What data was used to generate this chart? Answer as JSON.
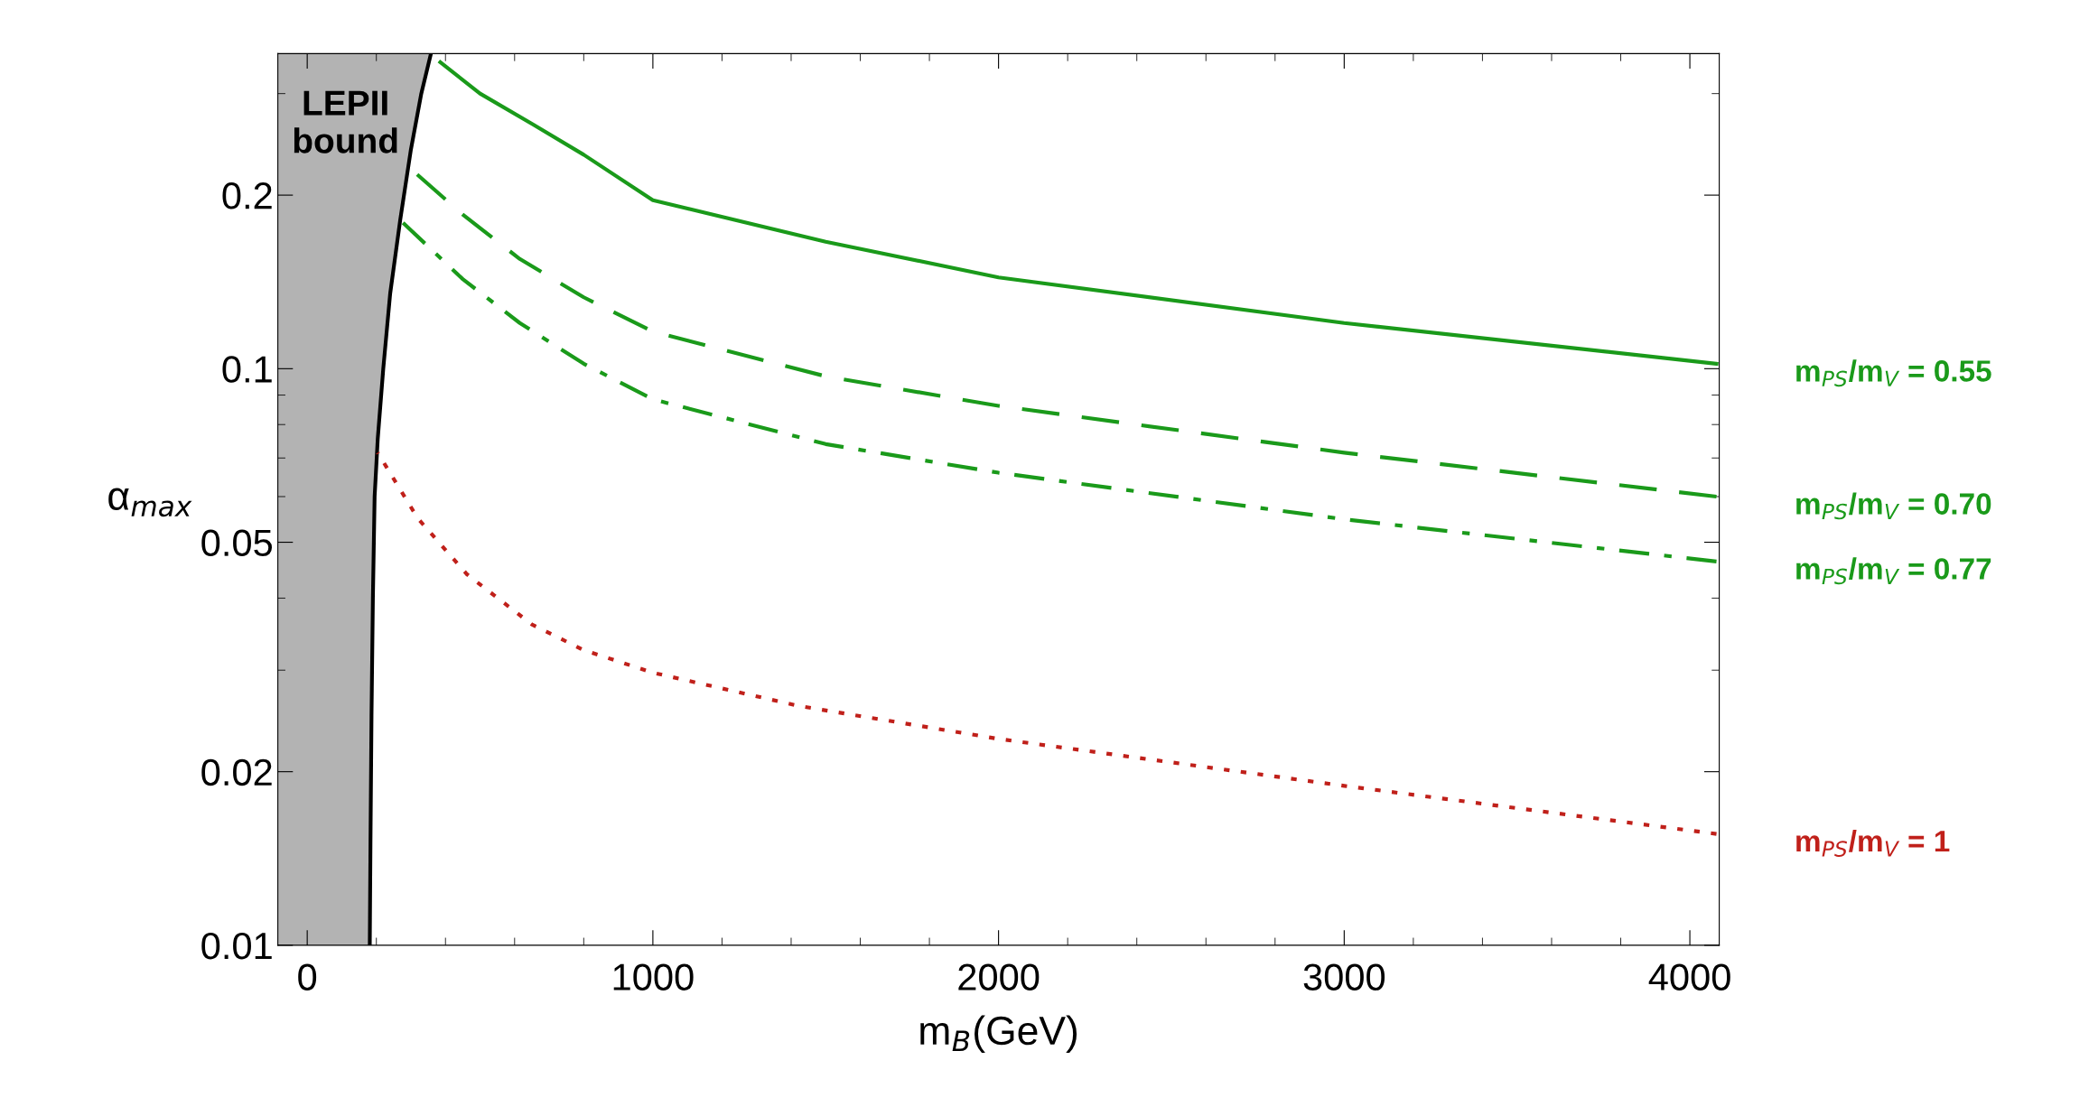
{
  "chart_data": {
    "type": "line",
    "xlabel": "m$_{B}$(GeV)",
    "ylabel": "α$_{max}$",
    "xlim": [
      -85,
      4085
    ],
    "xticks": [
      0,
      1000,
      2000,
      3000,
      4000
    ],
    "ylim": [
      0.01,
      0.352
    ],
    "yticks": [
      0.01,
      0.02,
      0.05,
      0.1,
      0.2
    ],
    "log": "y",
    "grid": false,
    "annotations": [
      "LEPII\nbound"
    ],
    "series": [
      {
        "type": "line",
        "color": "#000000",
        "line_style": "solid",
        "x": [
          181,
          183,
          186,
          190,
          195,
          204,
          220,
          240,
          269,
          300,
          330,
          358
        ],
        "values": [
          0.01,
          0.015,
          0.025,
          0.04,
          0.06,
          0.0755,
          0.1,
          0.135,
          0.181,
          0.24,
          0.3,
          0.352
        ]
      },
      {
        "name": "m$_{PS}$/m$_{V}$ = 0.55",
        "color": "#1a9a1a",
        "line_style": "solid",
        "x": [
          385,
          500,
          654,
          800,
          1000,
          1500,
          2000,
          3000,
          4077
        ],
        "values": [
          0.34,
          0.3,
          0.265,
          0.235,
          0.196,
          0.166,
          0.144,
          0.12,
          0.102
        ]
      },
      {
        "name": "m$_{PS}$/m$_{V}$ = 0.70",
        "color": "#1a9a1a",
        "line_style": "dashed",
        "x": [
          300,
          450,
          615,
          800,
          1000,
          1500,
          2000,
          3000,
          4077
        ],
        "values": [
          0.222,
          0.185,
          0.155,
          0.133,
          0.116,
          0.097,
          0.0862,
          0.0715,
          0.06
        ]
      },
      {
        "name": "m$_{PS}$/m$_{V}$ = 0.77",
        "color": "#1a9a1a",
        "line_style": "dashdot",
        "x": [
          269,
          450,
          615,
          800,
          1000,
          1500,
          2000,
          3000,
          4077
        ],
        "values": [
          0.181,
          0.143,
          0.12,
          0.102,
          0.0885,
          0.074,
          0.066,
          0.0548,
          0.0463
        ]
      },
      {
        "name": "m$_{PS}$/m$_{V}$ = 1",
        "color": "#c0201a",
        "line_style": "dotted",
        "x": [
          204,
          320,
          462,
          650,
          800,
          1000,
          1423,
          2000,
          3000,
          4077
        ],
        "values": [
          0.0715,
          0.055,
          0.044,
          0.036,
          0.0325,
          0.0297,
          0.026,
          0.0228,
          0.0189,
          0.0156
        ]
      }
    ]
  }
}
